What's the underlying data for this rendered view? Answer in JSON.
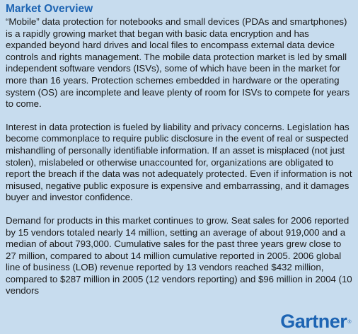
{
  "section": {
    "heading": "Market Overview",
    "paragraphs": [
      "“Mobile” data protection for notebooks and small devices (PDAs and smartphones) is a rapidly growing market that began with basic data encryption and has expanded beyond hard drives and local files to encompass external data device controls and rights management. The mobile data protection market is led by small independent software vendors (ISVs), some of which have been in the market for more than 16 years. Protection schemes embedded in hardware or the operating system (OS) are incomplete and leave plenty of room for ISVs to compete for years to come.",
      "Interest in data protection is fueled by liability and privacy concerns. Legislation has become commonplace to require public disclosure in the event of real or suspected mishandling of personally identifiable information. If an asset is misplaced (not just stolen), mislabeled or otherwise unaccounted for, organizations are obligated to report the breach if the data was not adequately protected. Even if information is not misused, negative public exposure is expensive and embarrassing, and it damages buyer and investor confidence.",
      "Demand for products in this market continues to grow. Seat sales for 2006 reported by 15 vendors totaled nearly 14 million, setting an average of about 919,000 and a median of about 793,000. Cumulative sales for the past three years grew close to 27 million, compared to about 14 million cumulative reported in 2005. 2006 global line of business (LOB) revenue reported by 13 vendors reached $432 million, compared to $287 million in 2005 (12 vendors reporting) and $96 million in 2004 (10 vendors"
    ]
  },
  "logo": {
    "text": "Gartner",
    "mark": "®"
  },
  "colors": {
    "background": "#c7dcee",
    "accent": "#1d64b3",
    "text": "#1a1a1a"
  }
}
